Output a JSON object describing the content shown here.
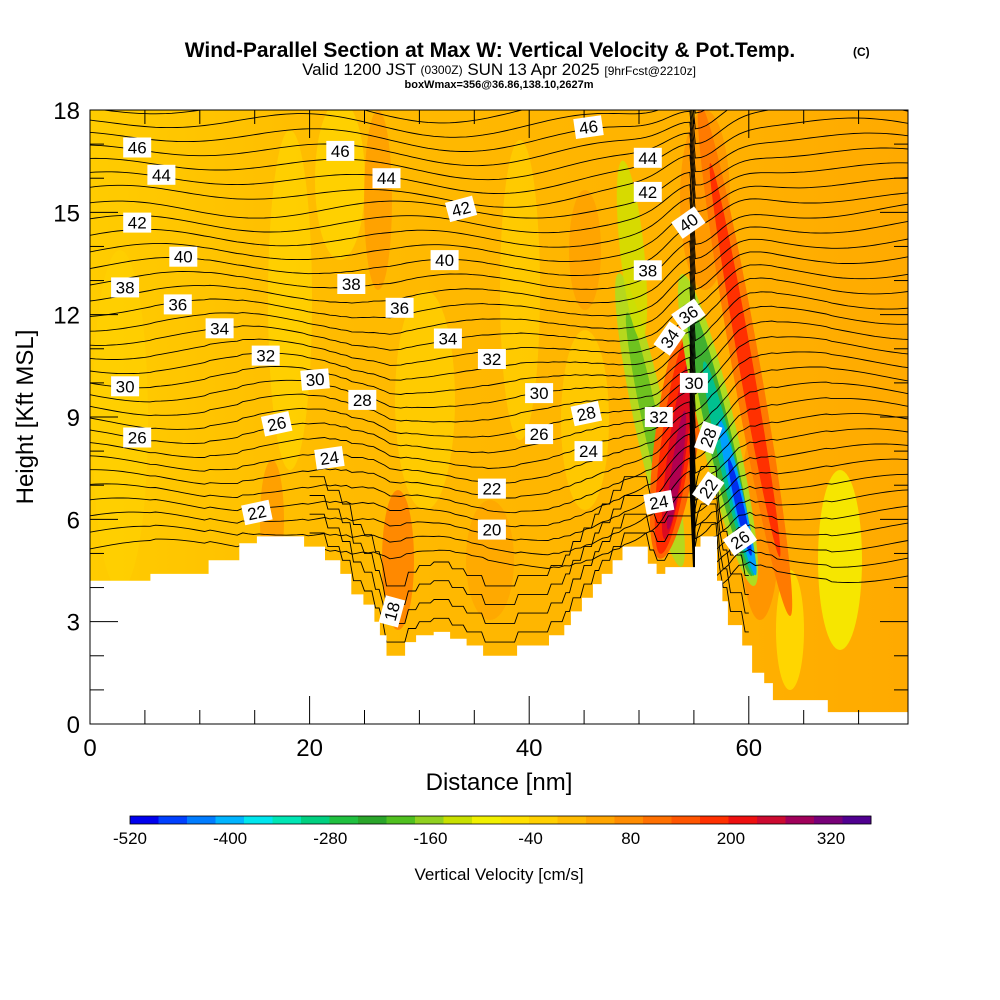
{
  "title": {
    "main": "Wind-Parallel Section at Max W: Vertical Velocity & Pot.Temp.",
    "unit_tag": "(C)",
    "valid_prefix": "Valid 1200 JST",
    "valid_z": "(0300Z)",
    "valid_date": "SUN 13 Apr 2025",
    "fcst": "[9hrFcst@2210z]",
    "box_info": "boxWmax=356@36.86,138.10,2627m"
  },
  "chart_data": {
    "type": "heatmap",
    "title": "Wind-Parallel Section at Max W: Vertical Velocity & Pot.Temp.",
    "xlabel": "Distance [nm]",
    "ylabel": "Height [Kft MSL]",
    "xlim": [
      0,
      74.5
    ],
    "ylim": [
      0,
      18
    ],
    "x_ticks": [
      0,
      20,
      40,
      60
    ],
    "y_ticks": [
      0,
      3,
      6,
      9,
      12,
      15,
      18
    ],
    "x_tick_labels": [
      "0",
      "20",
      "40",
      "60"
    ],
    "y_tick_labels": [
      "0",
      "3",
      "6",
      "9",
      "12",
      "15",
      "18"
    ],
    "terrain_profile": [
      [
        0,
        4.2
      ],
      [
        5.5,
        4.2
      ],
      [
        5.5,
        4.4
      ],
      [
        10.8,
        4.4
      ],
      [
        10.8,
        4.8
      ],
      [
        13.6,
        4.8
      ],
      [
        13.6,
        5.3
      ],
      [
        15.2,
        5.3
      ],
      [
        15.2,
        5.5
      ],
      [
        19.5,
        5.5
      ],
      [
        19.5,
        5.2
      ],
      [
        21.4,
        5.2
      ],
      [
        21.4,
        4.8
      ],
      [
        22.8,
        4.8
      ],
      [
        22.8,
        4.4
      ],
      [
        23.8,
        4.4
      ],
      [
        23.8,
        3.8
      ],
      [
        24.9,
        3.8
      ],
      [
        24.9,
        3.5
      ],
      [
        25.9,
        3.5
      ],
      [
        25.9,
        3.0
      ],
      [
        26.4,
        3.0
      ],
      [
        26.4,
        2.6
      ],
      [
        27,
        2.6
      ],
      [
        27,
        2.0
      ],
      [
        28.7,
        2.0
      ],
      [
        28.7,
        2.4
      ],
      [
        29.7,
        2.4
      ],
      [
        29.7,
        2.6
      ],
      [
        31.3,
        2.6
      ],
      [
        31.3,
        2.7
      ],
      [
        32.8,
        2.7
      ],
      [
        32.8,
        2.5
      ],
      [
        34.3,
        2.5
      ],
      [
        34.3,
        2.3
      ],
      [
        35.8,
        2.3
      ],
      [
        35.8,
        2.0
      ],
      [
        38.9,
        2.0
      ],
      [
        38.9,
        2.3
      ],
      [
        41.8,
        2.3
      ],
      [
        41.8,
        2.6
      ],
      [
        43.2,
        2.6
      ],
      [
        43.2,
        2.9
      ],
      [
        43.8,
        2.9
      ],
      [
        43.8,
        3.3
      ],
      [
        44.8,
        3.3
      ],
      [
        44.8,
        3.7
      ],
      [
        45.8,
        3.7
      ],
      [
        45.8,
        4.1
      ],
      [
        46.6,
        4.1
      ],
      [
        46.6,
        4.4
      ],
      [
        47.6,
        4.4
      ],
      [
        47.6,
        4.8
      ],
      [
        48.5,
        4.8
      ],
      [
        48.5,
        5.2
      ],
      [
        50.8,
        5.2
      ],
      [
        50.8,
        4.7
      ],
      [
        51.6,
        4.7
      ],
      [
        51.6,
        4.4
      ],
      [
        52.4,
        4.4
      ],
      [
        52.4,
        4.6
      ],
      [
        55.1,
        4.6
      ],
      [
        55.1,
        5.2
      ],
      [
        55.6,
        5.2
      ],
      [
        55.6,
        5.5
      ],
      [
        57.1,
        5.5
      ],
      [
        57.1,
        4.2
      ],
      [
        57.6,
        4.2
      ],
      [
        57.6,
        3.6
      ],
      [
        58.1,
        3.6
      ],
      [
        58.1,
        2.9
      ],
      [
        59.4,
        2.9
      ],
      [
        59.4,
        2.3
      ],
      [
        60.3,
        2.3
      ],
      [
        60.3,
        1.5
      ],
      [
        61.4,
        1.5
      ],
      [
        61.4,
        1.2
      ],
      [
        62.2,
        1.2
      ],
      [
        62.2,
        0.7
      ],
      [
        67.2,
        0.7
      ],
      [
        67.2,
        0.35
      ],
      [
        74.5,
        0.35
      ]
    ],
    "contour_labels": [
      {
        "text": "46",
        "x": 4.3,
        "y": 16.9,
        "rot": 0
      },
      {
        "text": "44",
        "x": 6.5,
        "y": 16.1,
        "rot": 0
      },
      {
        "text": "42",
        "x": 4.3,
        "y": 14.7,
        "rot": 0
      },
      {
        "text": "40",
        "x": 8.5,
        "y": 13.7,
        "rot": 0
      },
      {
        "text": "38",
        "x": 3.2,
        "y": 12.8,
        "rot": 0
      },
      {
        "text": "36",
        "x": 8,
        "y": 12.3,
        "rot": 0
      },
      {
        "text": "34",
        "x": 11.8,
        "y": 11.6,
        "rot": 0
      },
      {
        "text": "32",
        "x": 16,
        "y": 10.8,
        "rot": 0
      },
      {
        "text": "30",
        "x": 3.2,
        "y": 9.9,
        "rot": 0
      },
      {
        "text": "26",
        "x": 4.3,
        "y": 8.4,
        "rot": 0
      },
      {
        "text": "26",
        "x": 17,
        "y": 8.8,
        "rot": -12
      },
      {
        "text": "30",
        "x": 20.5,
        "y": 10.1,
        "rot": -5
      },
      {
        "text": "28",
        "x": 24.8,
        "y": 9.5,
        "rot": 0
      },
      {
        "text": "24",
        "x": 21.8,
        "y": 7.8,
        "rot": -8
      },
      {
        "text": "22",
        "x": 15.2,
        "y": 6.2,
        "rot": -12
      },
      {
        "text": "46",
        "x": 22.8,
        "y": 16.8,
        "rot": 0
      },
      {
        "text": "44",
        "x": 27,
        "y": 16.0,
        "rot": 0
      },
      {
        "text": "42",
        "x": 33.8,
        "y": 15.1,
        "rot": -15
      },
      {
        "text": "40",
        "x": 32.3,
        "y": 13.6,
        "rot": 0
      },
      {
        "text": "38",
        "x": 23.8,
        "y": 12.9,
        "rot": 0
      },
      {
        "text": "36",
        "x": 28.2,
        "y": 12.2,
        "rot": 0
      },
      {
        "text": "34",
        "x": 32.6,
        "y": 11.3,
        "rot": 0
      },
      {
        "text": "32",
        "x": 36.6,
        "y": 10.7,
        "rot": 0
      },
      {
        "text": "30",
        "x": 40.9,
        "y": 9.7,
        "rot": 0
      },
      {
        "text": "28",
        "x": 45.2,
        "y": 9.1,
        "rot": -12
      },
      {
        "text": "26",
        "x": 40.9,
        "y": 8.5,
        "rot": 0
      },
      {
        "text": "24",
        "x": 45.4,
        "y": 8.0,
        "rot": 0
      },
      {
        "text": "22",
        "x": 36.6,
        "y": 6.9,
        "rot": 0
      },
      {
        "text": "20",
        "x": 36.6,
        "y": 5.7,
        "rot": 0
      },
      {
        "text": "18",
        "x": 27.5,
        "y": 3.3,
        "rot": -75
      },
      {
        "text": "46",
        "x": 45.4,
        "y": 17.5,
        "rot": -8
      },
      {
        "text": "44",
        "x": 50.8,
        "y": 16.6,
        "rot": 0
      },
      {
        "text": "42",
        "x": 50.8,
        "y": 15.6,
        "rot": 0
      },
      {
        "text": "40",
        "x": 54.5,
        "y": 14.7,
        "rot": -35
      },
      {
        "text": "38",
        "x": 50.8,
        "y": 13.3,
        "rot": 0
      },
      {
        "text": "36",
        "x": 54.5,
        "y": 12.0,
        "rot": -35
      },
      {
        "text": "34",
        "x": 52.8,
        "y": 11.3,
        "rot": -55
      },
      {
        "text": "30",
        "x": 55,
        "y": 10.0,
        "rot": 0
      },
      {
        "text": "32",
        "x": 51.8,
        "y": 9.0,
        "rot": 0
      },
      {
        "text": "28",
        "x": 56.3,
        "y": 8.4,
        "rot": -70
      },
      {
        "text": "22",
        "x": 56.3,
        "y": 6.9,
        "rot": -55
      },
      {
        "text": "24",
        "x": 51.8,
        "y": 6.5,
        "rot": -10
      },
      {
        "text": "26",
        "x": 59.2,
        "y": 5.4,
        "rot": -35
      }
    ],
    "colorbar": {
      "label": "Vertical Velocity [cm/s]",
      "tick_labels": [
        "-520",
        "-400",
        "-280",
        "-160",
        "-40",
        "80",
        "200",
        "320"
      ],
      "colors": [
        "#0000ee",
        "#0040ff",
        "#007cff",
        "#00b4ff",
        "#00e6ee",
        "#00e6b4",
        "#00d080",
        "#20c040",
        "#2aa52a",
        "#50c020",
        "#90d020",
        "#c8e000",
        "#f0f000",
        "#ffe000",
        "#ffd000",
        "#ffbb00",
        "#ffa500",
        "#ff8c00",
        "#ff7000",
        "#ff5500",
        "#ff3000",
        "#ee1010",
        "#cc0a30",
        "#a0005a",
        "#780078",
        "#500090"
      ]
    }
  }
}
